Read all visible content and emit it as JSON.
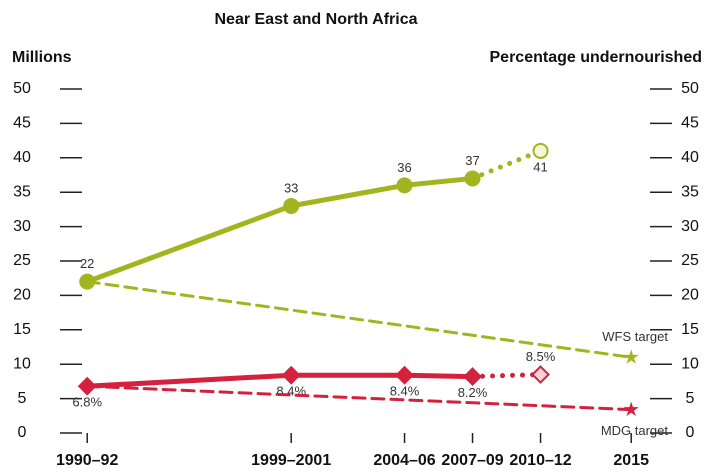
{
  "chart_data": {
    "type": "line",
    "title": "Near East and North Africa",
    "y_label": "Millions",
    "y2_label": "Percentage undernourished",
    "xlim": [
      1989.8,
      2016.8
    ],
    "xticks": [
      {
        "value": 1991,
        "label": "1990–92"
      },
      {
        "value": 2000,
        "label": "1999–2001"
      },
      {
        "value": 2005,
        "label": "2004–06"
      },
      {
        "value": 2008,
        "label": "2007–09"
      },
      {
        "value": 2011,
        "label": "2010–12"
      },
      {
        "value": 2015,
        "label": "2015"
      }
    ],
    "ylim": [
      0,
      50
    ],
    "yticks": [
      0,
      5,
      10,
      15,
      20,
      25,
      30,
      35,
      40,
      45,
      50
    ],
    "y2lim": [
      0,
      50
    ],
    "y2ticks": [
      0,
      5,
      10,
      15,
      20,
      25,
      30,
      35,
      40,
      45,
      50
    ],
    "series": [
      {
        "color": "#a3b51e",
        "style": "solid",
        "projected_last": true,
        "marker": "circle",
        "x": [
          1991,
          2000,
          2005,
          2008,
          2011
        ],
        "values": [
          22,
          33,
          36,
          37,
          41
        ]
      },
      {
        "color": "#d4213d",
        "style": "solid",
        "projected_last": true,
        "marker": "diamond",
        "axis": "y2",
        "x": [
          1991,
          2000,
          2005,
          2008,
          2011
        ],
        "values": [
          6.8,
          8.4,
          8.4,
          8.2,
          8.5
        ],
        "value_labels": [
          "6.8%",
          "8.4%",
          "8.4%",
          "8.2%",
          "8.5%"
        ]
      },
      {
        "name": "WFS target",
        "color": "#a3b51e",
        "style": "dashed",
        "marker": "star",
        "x": [
          1991,
          2015
        ],
        "values": [
          22,
          11
        ]
      },
      {
        "name": "MDG target",
        "color": "#d4213d",
        "style": "dashed",
        "marker": "star",
        "axis": "y2",
        "x": [
          1991,
          2015
        ],
        "values": [
          6.8,
          3.4
        ]
      }
    ]
  }
}
